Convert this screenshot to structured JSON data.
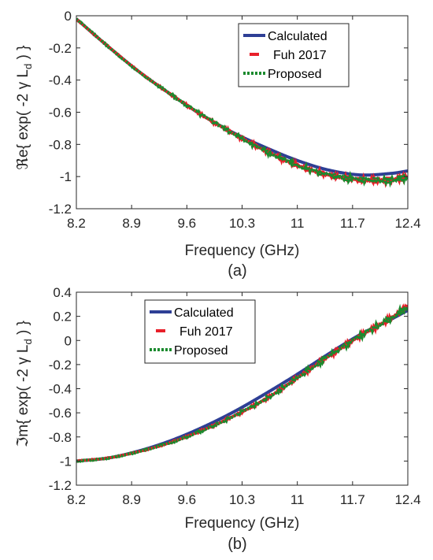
{
  "chart_data": [
    {
      "type": "line",
      "panel_label": "(a)",
      "xlabel": "Frequency (GHz)",
      "ylabel": "ℜe{ exp( -2 γ L_d ) }",
      "ylabel_parts": {
        "prefix": "ℜe{ exp( -2 ",
        "gamma": "γ",
        "L": " L",
        "sub": "d",
        "suffix": " ) }"
      },
      "xlim": [
        8.2,
        12.4
      ],
      "ylim": [
        -1.2,
        0
      ],
      "xticks": [
        "8.2",
        "8.9",
        "9.6",
        "10.3",
        "11",
        "11.7",
        "12.4"
      ],
      "yticks": [
        "0",
        "-0.2",
        "-0.4",
        "-0.6",
        "-0.8",
        "-1",
        "-1.2"
      ],
      "legend_position": "top-right",
      "series": [
        {
          "name": "Calculated",
          "color": "#2e3f95",
          "style": "solid",
          "x": [
            8.2,
            8.6,
            9.0,
            9.4,
            9.8,
            10.2,
            10.6,
            11.0,
            11.4,
            11.8,
            12.2,
            12.4
          ],
          "values": [
            -0.02,
            -0.19,
            -0.35,
            -0.49,
            -0.62,
            -0.73,
            -0.82,
            -0.9,
            -0.96,
            -0.99,
            -0.98,
            -0.965
          ]
        },
        {
          "name": "Fuh 2017",
          "color": "#e8202a",
          "style": "dashed",
          "x": [
            8.2,
            8.6,
            9.0,
            9.4,
            9.8,
            10.2,
            10.6,
            11.0,
            11.4,
            11.8,
            12.2,
            12.4
          ],
          "values": [
            -0.02,
            -0.19,
            -0.35,
            -0.49,
            -0.62,
            -0.735,
            -0.84,
            -0.93,
            -0.99,
            -1.02,
            -1.02,
            -1.0
          ]
        },
        {
          "name": "Proposed",
          "color": "#1b8a2e",
          "style": "dotted",
          "x": [
            8.2,
            8.6,
            9.0,
            9.4,
            9.8,
            10.2,
            10.6,
            11.0,
            11.4,
            11.8,
            12.2,
            12.4
          ],
          "values": [
            -0.02,
            -0.19,
            -0.35,
            -0.49,
            -0.62,
            -0.735,
            -0.84,
            -0.93,
            -0.99,
            -1.02,
            -1.02,
            -1.0
          ]
        }
      ]
    },
    {
      "type": "line",
      "panel_label": "(b)",
      "xlabel": "Frequency (GHz)",
      "ylabel": "ℑm{ exp( -2 γ L_d ) }",
      "ylabel_parts": {
        "prefix": "ℑm{ exp( -2 ",
        "gamma": "γ",
        "L": " L",
        "sub": "d",
        "suffix": " ) }"
      },
      "xlim": [
        8.2,
        12.4
      ],
      "ylim": [
        -1.2,
        0.4
      ],
      "xticks": [
        "8.2",
        "8.9",
        "9.6",
        "10.3",
        "11",
        "11.7",
        "12.4"
      ],
      "yticks": [
        "0.4",
        "0.2",
        "0",
        "-0.2",
        "-0.4",
        "-0.6",
        "-0.8",
        "-1",
        "-1.2"
      ],
      "legend_position": "top-left",
      "series": [
        {
          "name": "Calculated",
          "color": "#2e3f95",
          "style": "solid",
          "x": [
            8.2,
            8.6,
            9.0,
            9.4,
            9.8,
            10.2,
            10.6,
            11.0,
            11.4,
            11.8,
            12.2,
            12.4
          ],
          "values": [
            -1.0,
            -0.975,
            -0.915,
            -0.83,
            -0.72,
            -0.59,
            -0.44,
            -0.28,
            -0.11,
            0.05,
            0.18,
            0.25
          ]
        },
        {
          "name": "Fuh 2017",
          "color": "#e8202a",
          "style": "dashed",
          "x": [
            8.2,
            8.6,
            9.0,
            9.4,
            9.8,
            10.2,
            10.6,
            11.0,
            11.4,
            11.8,
            12.2,
            12.4
          ],
          "values": [
            -1.0,
            -0.975,
            -0.92,
            -0.845,
            -0.745,
            -0.625,
            -0.485,
            -0.31,
            -0.13,
            0.04,
            0.19,
            0.29
          ]
        },
        {
          "name": "Proposed",
          "color": "#1b8a2e",
          "style": "dotted",
          "x": [
            8.2,
            8.6,
            9.0,
            9.4,
            9.8,
            10.2,
            10.6,
            11.0,
            11.4,
            11.8,
            12.2,
            12.4
          ],
          "values": [
            -1.0,
            -0.975,
            -0.92,
            -0.845,
            -0.745,
            -0.625,
            -0.485,
            -0.31,
            -0.13,
            0.04,
            0.19,
            0.28
          ]
        }
      ]
    }
  ]
}
